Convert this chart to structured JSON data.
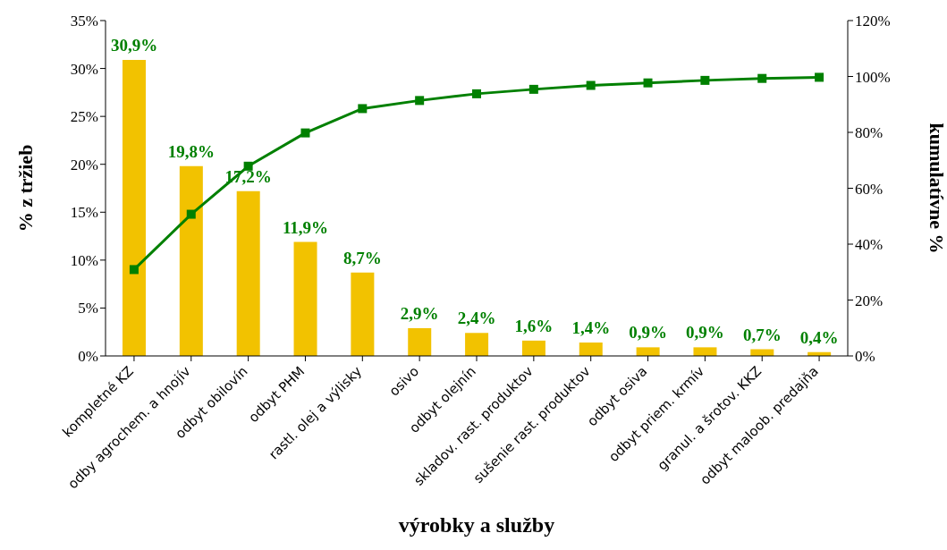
{
  "chart_data": {
    "type": "bar",
    "xlabel": "výrobky a služby",
    "ylabel": "% z tržieb",
    "y2label": "kumulatívne %",
    "categories": [
      "kompletné KZ",
      "odby agrochem. a hnojív",
      "odbyt obilovín",
      "odbyt PHM",
      "rastl. olej a výlisky",
      "osivo",
      "odbyt olejnín",
      "skladov. rast. produktov",
      "sušenie rast. produktov",
      "odbyt osiva",
      "odbyt priem. krmív",
      "granul. a šrotov. KKZ",
      "odbyt maloob. predajňa"
    ],
    "series": [
      {
        "color": "#f2c200",
        "values": [
          30.9,
          19.8,
          17.2,
          11.9,
          8.7,
          2.9,
          2.4,
          1.6,
          1.4,
          0.9,
          0.9,
          0.7,
          0.4
        ],
        "value_labels": [
          "30,9%",
          "19,8%",
          "17,2%",
          "11,9%",
          "8,7%",
          "2,9%",
          "2,4%",
          "1,6%",
          "1,4%",
          "0,9%",
          "0,9%",
          "0,7%",
          "0,4%"
        ]
      },
      {
        "type": "line",
        "axis": "y2",
        "color": "#008000",
        "marker": "square",
        "values": [
          30.9,
          50.7,
          67.9,
          79.8,
          88.5,
          91.4,
          93.8,
          95.4,
          96.8,
          97.7,
          98.6,
          99.3,
          99.7
        ]
      }
    ],
    "ylim": [
      0,
      35
    ],
    "yticks": [
      {
        "value": 0,
        "label": "0%"
      },
      {
        "value": 5,
        "label": "5%"
      },
      {
        "value": 10,
        "label": "10%"
      },
      {
        "value": 15,
        "label": "15%"
      },
      {
        "value": 20,
        "label": "20%"
      },
      {
        "value": 25,
        "label": "25%"
      },
      {
        "value": 30,
        "label": "30%"
      },
      {
        "value": 35,
        "label": "35%"
      }
    ],
    "y2lim": [
      0,
      120
    ],
    "y2ticks": [
      {
        "value": 0,
        "label": "0%"
      },
      {
        "value": 20,
        "label": "20%"
      },
      {
        "value": 40,
        "label": "40%"
      },
      {
        "value": 60,
        "label": "60%"
      },
      {
        "value": 80,
        "label": "80%"
      },
      {
        "value": 100,
        "label": "100%"
      },
      {
        "value": 120,
        "label": "120%"
      }
    ],
    "grid": false,
    "legend": false
  }
}
